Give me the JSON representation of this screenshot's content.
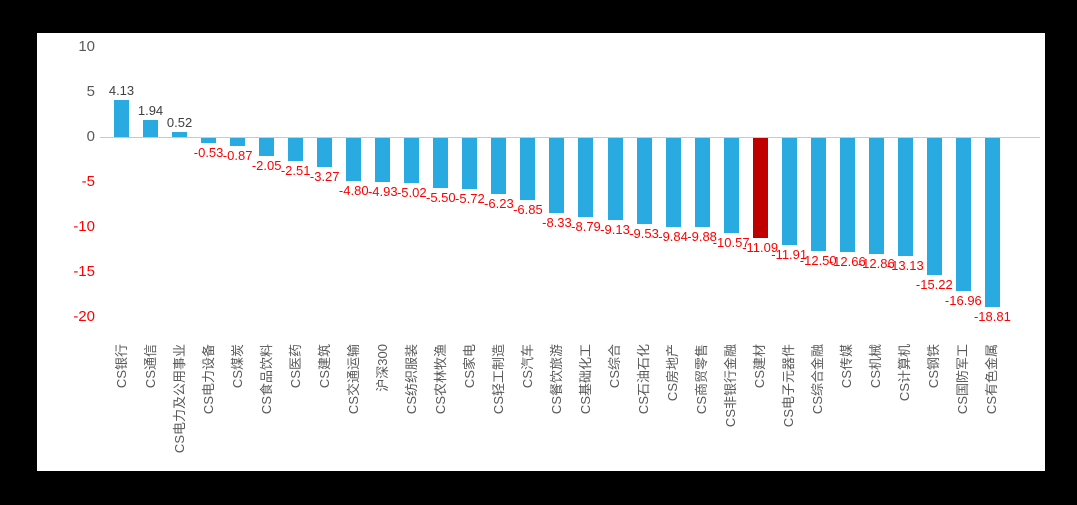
{
  "chart_data": {
    "type": "bar",
    "title": "",
    "xlabel": "",
    "ylabel": "",
    "categories": [
      "CS银行",
      "CS通信",
      "CS电力及公用事业",
      "CS电力设备",
      "CS煤炭",
      "CS食品饮料",
      "CS医药",
      "CS建筑",
      "CS交通运输",
      "沪深300",
      "CS纺织服装",
      "CS农林牧渔",
      "CS家电",
      "CS轻工制造",
      "CS汽车",
      "CS餐饮旅游",
      "CS基础化工",
      "CS综合",
      "CS石油石化",
      "CS房地产",
      "CS商贸零售",
      "CS非银行金融",
      "CS建材",
      "CS电子元器件",
      "CS综合金融",
      "CS传媒",
      "CS机械",
      "CS计算机",
      "CS钢铁",
      "CS国防军工",
      "CS有色金属"
    ],
    "values": [
      4.13,
      1.94,
      0.52,
      -0.53,
      -0.87,
      -2.05,
      -2.51,
      -3.27,
      -4.8,
      -4.93,
      -5.02,
      -5.5,
      -5.72,
      -6.23,
      -6.85,
      -8.33,
      -8.79,
      -9.13,
      -9.53,
      -9.84,
      -9.88,
      -10.57,
      -11.09,
      -11.91,
      -12.5,
      -12.66,
      -12.86,
      -13.13,
      -15.22,
      -16.96,
      -18.81
    ],
    "value_label_decimals": 2,
    "highlight_index": 22,
    "highlight_category": "CS建材",
    "ylim": [
      -20,
      10
    ],
    "yticks": [
      10,
      5,
      0,
      -5,
      -10,
      -15,
      -20
    ],
    "grid": false,
    "legend": "none",
    "colors": {
      "bar": "#29ABE2",
      "highlight_bar": "#C00000",
      "positive_value_label": "#404040",
      "negative_value_label": "#FF0000",
      "axis_tick_positive": "#595959",
      "axis_tick_negative": "#FF0000",
      "category_label": "#595959",
      "zero_line": "#C9C9C9",
      "panel_background": "#FFFFFF",
      "page_background": "#000000"
    }
  }
}
